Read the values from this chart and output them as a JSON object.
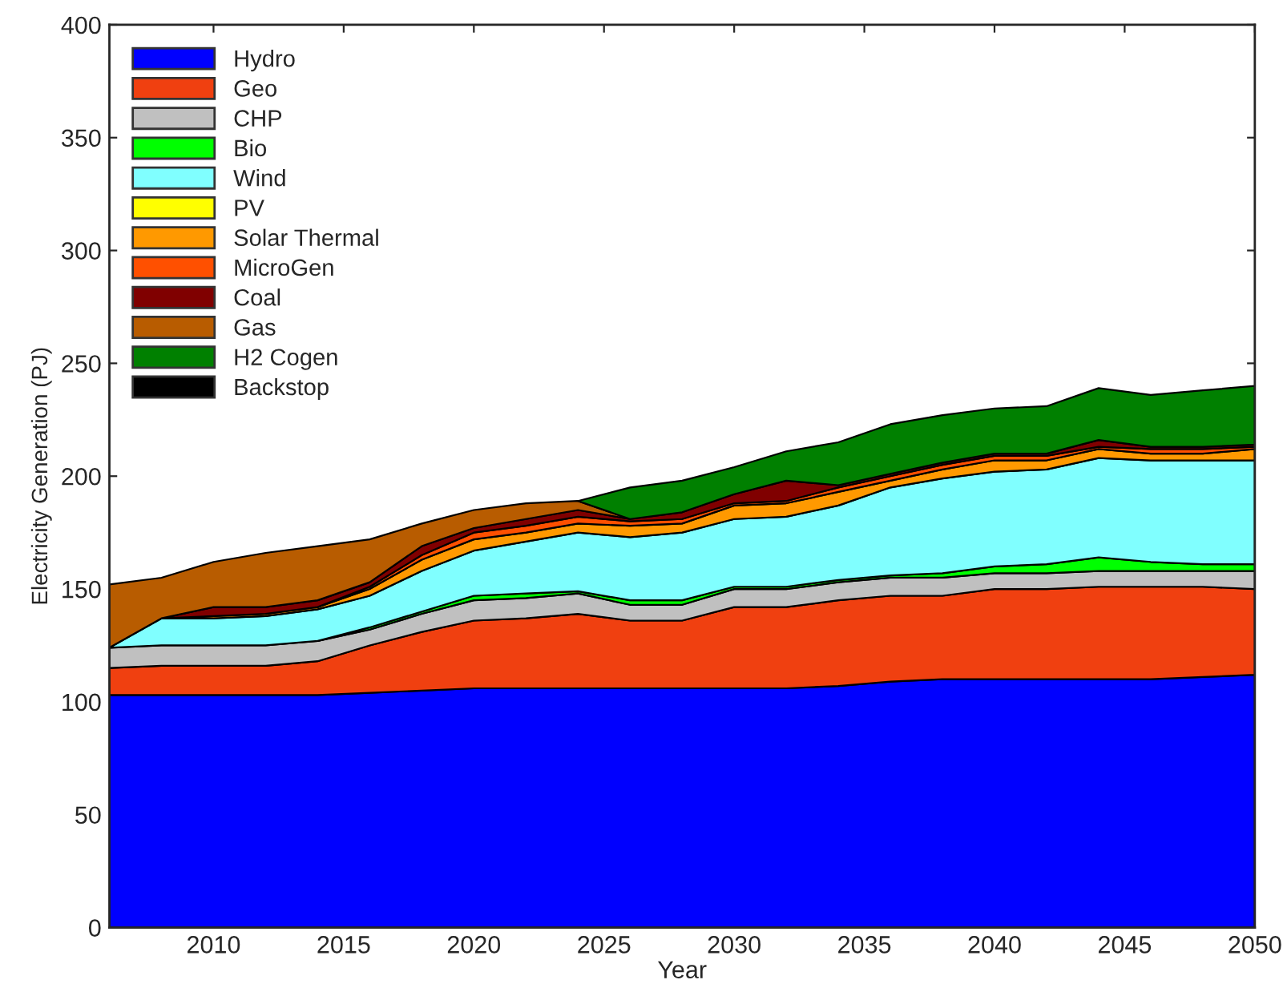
{
  "chart_data": {
    "type": "area",
    "stacked": true,
    "xlabel": "Year",
    "ylabel": "Electricity Generation (PJ)",
    "x": [
      2006,
      2008,
      2010,
      2012,
      2014,
      2016,
      2018,
      2020,
      2022,
      2024,
      2026,
      2028,
      2030,
      2032,
      2034,
      2036,
      2038,
      2040,
      2042,
      2044,
      2046,
      2048,
      2050
    ],
    "xlim": [
      2006,
      2050
    ],
    "xticks": [
      2010,
      2015,
      2020,
      2025,
      2030,
      2035,
      2040,
      2045,
      2050
    ],
    "ylim": [
      0,
      400
    ],
    "yticks": [
      0,
      50,
      100,
      150,
      200,
      250,
      300,
      350,
      400
    ],
    "grid": false,
    "legend": "top left",
    "series": [
      {
        "name": "Hydro",
        "color": "#0000ff",
        "values": [
          103,
          103,
          103,
          103,
          103,
          104,
          105,
          106,
          106,
          106,
          106,
          106,
          106,
          106,
          107,
          109,
          110,
          110,
          110,
          110,
          110,
          111,
          112
        ]
      },
      {
        "name": "Geo",
        "color": "#f04010",
        "values": [
          12,
          13,
          13,
          13,
          15,
          21,
          26,
          30,
          31,
          33,
          30,
          30,
          36,
          36,
          38,
          38,
          37,
          40,
          40,
          41,
          41,
          40,
          38
        ]
      },
      {
        "name": "CHP",
        "color": "#c0c0c0",
        "values": [
          9,
          9,
          9,
          9,
          9,
          7,
          8,
          9,
          9,
          9,
          7,
          7,
          8,
          8,
          8,
          8,
          8,
          7,
          7,
          7,
          7,
          7,
          8
        ]
      },
      {
        "name": "Bio",
        "color": "#00ff00",
        "values": [
          null,
          null,
          null,
          null,
          0,
          1,
          1,
          2,
          2,
          1,
          2,
          2,
          1,
          1,
          1,
          1,
          2,
          3,
          4,
          6,
          4,
          3,
          3
        ]
      },
      {
        "name": "Wind",
        "color": "#80ffff",
        "values": [
          0,
          12,
          12,
          13,
          14,
          14,
          18,
          20,
          23,
          26,
          28,
          30,
          30,
          31,
          33,
          39,
          42,
          42,
          42,
          44,
          45,
          46,
          46
        ]
      },
      {
        "name": "PV",
        "color": "#ffff00",
        "values": [
          null,
          null,
          null,
          null,
          null,
          null,
          null,
          null,
          null,
          null,
          null,
          null,
          null,
          null,
          null,
          null,
          null,
          null,
          null,
          null,
          null,
          null,
          null
        ]
      },
      {
        "name": "Solar Thermal",
        "color": "#ff9900",
        "values": [
          null,
          0,
          1,
          1,
          1,
          3,
          5,
          5,
          4,
          4,
          5,
          4,
          6,
          6,
          6,
          3,
          4,
          5,
          4,
          4,
          3,
          3,
          5
        ]
      },
      {
        "name": "MicroGen",
        "color": "#ff5000",
        "values": [
          null,
          null,
          null,
          null,
          0,
          1,
          2,
          3,
          3,
          3,
          2,
          2,
          1,
          1,
          2,
          2,
          2,
          2,
          2,
          1,
          2,
          2,
          1
        ]
      },
      {
        "name": "Coal",
        "color": "#800000",
        "values": [
          null,
          0,
          4,
          3,
          3,
          2,
          4,
          2,
          3,
          3,
          1,
          3,
          4,
          9,
          1,
          1,
          1,
          1,
          1,
          3,
          1,
          1,
          1
        ]
      },
      {
        "name": "Gas",
        "color": "#b85c00",
        "values": [
          28,
          18,
          20,
          24,
          24,
          19,
          10,
          8,
          7,
          4,
          0,
          null,
          null,
          null,
          null,
          null,
          null,
          null,
          null,
          null,
          null,
          null,
          null
        ]
      },
      {
        "name": "H2 Cogen",
        "color": "#008000",
        "values": [
          null,
          null,
          null,
          null,
          null,
          null,
          null,
          null,
          null,
          0,
          14,
          14,
          12,
          13,
          19,
          22,
          21,
          20,
          21,
          23,
          23,
          25,
          26
        ]
      },
      {
        "name": "Backstop",
        "color": "#000000",
        "values": [
          null,
          null,
          null,
          null,
          null,
          null,
          null,
          null,
          null,
          null,
          null,
          null,
          null,
          null,
          null,
          null,
          null,
          null,
          null,
          null,
          null,
          null,
          null
        ]
      }
    ]
  }
}
